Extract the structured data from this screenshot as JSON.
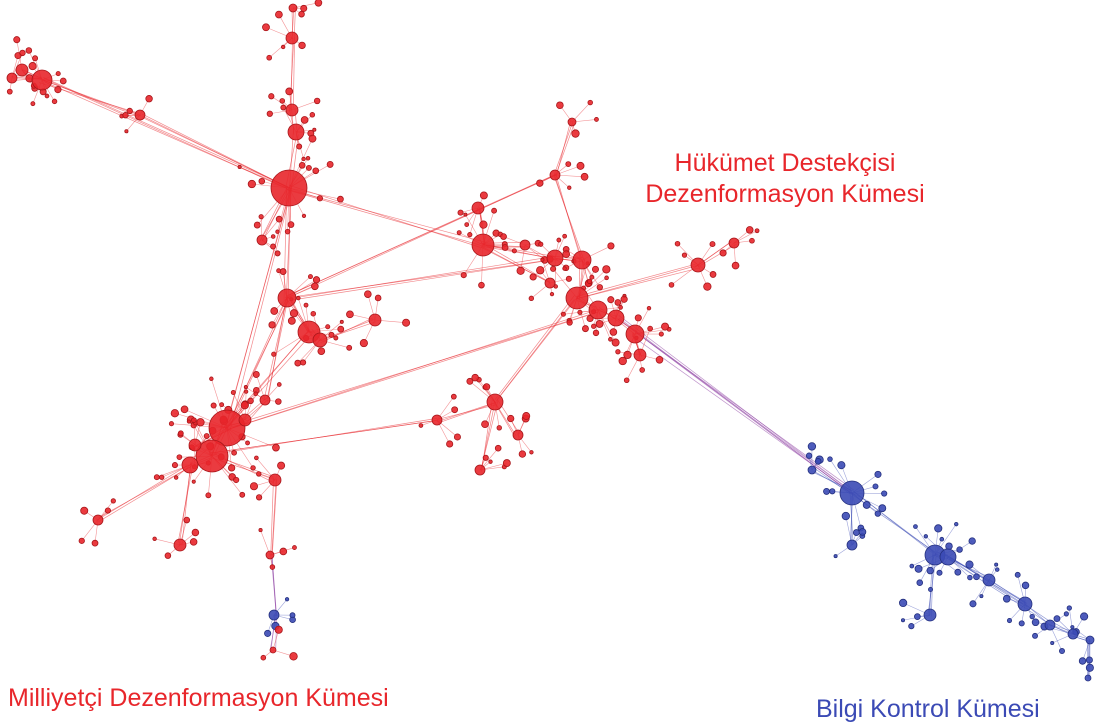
{
  "labels": {
    "gov_line1": "Hükümet Destekçisi",
    "gov_line2": "Dezenformasyon Kümesi",
    "nationalist": "Milliyetçi Dezenformasyon Kümesi",
    "info_control": "Bilgi Kontrol Kümesi"
  },
  "colors": {
    "red_cluster": "#e8262b",
    "blue_cluster": "#3b4ab5",
    "red_label": "#e8262b",
    "blue_label": "#3b4ab5"
  }
}
